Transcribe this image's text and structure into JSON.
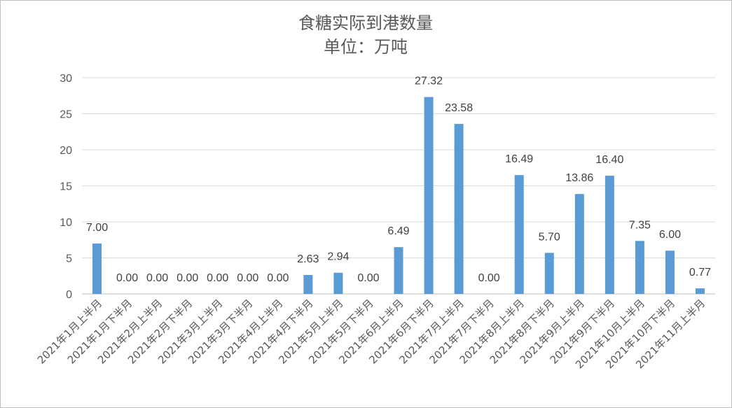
{
  "chart_data": {
    "type": "bar",
    "title": "食糖实际到港数量",
    "subtitle": "单位：万吨",
    "categories": [
      "2021年1月上半月",
      "2021年1月下半月",
      "2021年2月上半月",
      "2021年2月下半月",
      "2021年3月上半月",
      "2021年3月下半月",
      "2021年4月上半月",
      "2021年4月下半月",
      "2021年5月上半月",
      "2021年5月下半月",
      "2021年6月上半月",
      "2021年6月下半月",
      "2021年7月上半月",
      "2021年7月下半月",
      "2021年8月上半月",
      "2021年8月下半月",
      "2021年9月上半月",
      "2021年9月下半月",
      "2021年10月上半月",
      "2021年10月下半月",
      "2021年11月上半月"
    ],
    "values": [
      7.0,
      0.0,
      0.0,
      0.0,
      0.0,
      0.0,
      0.0,
      2.63,
      2.94,
      0.0,
      6.49,
      27.32,
      23.58,
      0.0,
      16.49,
      5.7,
      13.86,
      16.4,
      7.35,
      6.0,
      0.77
    ],
    "data_labels": [
      "7.00",
      "0.00",
      "0.00",
      "0.00",
      "0.00",
      "0.00",
      "0.00",
      "2.63",
      "2.94",
      "0.00",
      "6.49",
      "27.32",
      "23.58",
      "0.00",
      "16.49",
      "5.70",
      "13.86",
      "16.40",
      "7.35",
      "6.00",
      "0.77"
    ],
    "ylim": [
      0,
      30
    ],
    "yticks": [
      "0",
      "5",
      "10",
      "15",
      "20",
      "25",
      "30"
    ],
    "grid": true,
    "legend": "none",
    "bar_color": "#5b9bd5"
  }
}
